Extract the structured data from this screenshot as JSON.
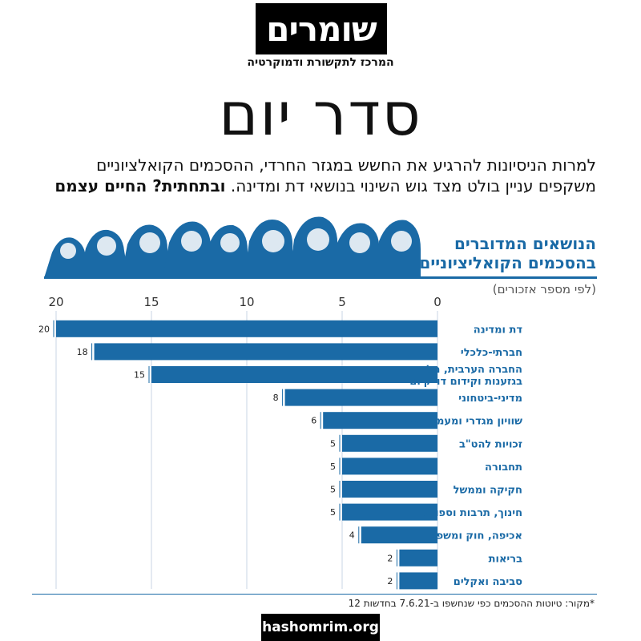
{
  "brand": {
    "logo_text": "שומרים",
    "logo_subtitle": "המרכז לתקשורת ודמוקרטיה",
    "website": "hashomrim.org"
  },
  "headline": "סדר יום",
  "intro": {
    "text": "למרות הניסיונות להרגיע את החשש במגזר החרדי, ההסכמים הקואלציוניים משקפים עניין בולט מצד גוש השינוי בנושאי דת ומדינה.",
    "emphasis": "ובתחתית? החיים עצמם"
  },
  "chart_data": {
    "type": "bar",
    "orientation": "horizontal",
    "title_line1": "הנושאים המדוברים",
    "title_line2": "בהסכמים הקואליציוניים",
    "subtitle": "(לפי מספר אזכורים)",
    "categories": [
      "דת ומדינה",
      "חברתי-כלכלי",
      "החברה הערבית, מלחמה בגזענות וקידום דו\"קיום",
      "מדיני-ביטחוני",
      "שוויון מגדרי ומעמד האישה",
      "זכויות להט\"ב",
      "תחבורה",
      "חקיקה וממשל",
      "חינוך, תרבות וספורט",
      "אכיפה, חוק ומשפט",
      "בריאות",
      "סביבה ואקלים"
    ],
    "values": [
      20,
      18,
      15,
      8,
      6,
      5,
      5,
      5,
      5,
      4,
      2,
      2
    ],
    "xlim": [
      0,
      20
    ],
    "xticks": [
      0,
      5,
      10,
      15,
      20
    ],
    "axis_direction": "right-to-left",
    "grid": true,
    "bar_color": "#1a6aa6"
  },
  "source_note": "*מקור: טיוטות ההסכמים כפי שנחשפו ב-7.6.21 בחדשות 12"
}
